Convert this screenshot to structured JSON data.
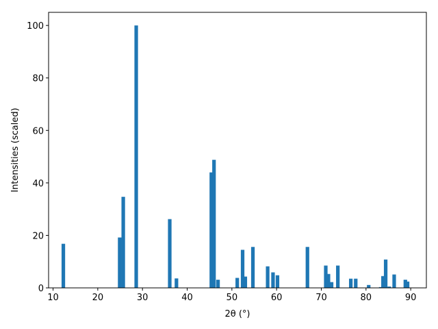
{
  "chart_data": {
    "type": "bar",
    "title": "",
    "xlabel": "2θ (°)",
    "ylabel": "Intensities (scaled)",
    "xlim": [
      9.0,
      93.5
    ],
    "ylim": [
      0,
      105
    ],
    "xticks": [
      10,
      20,
      30,
      40,
      50,
      60,
      70,
      80,
      90
    ],
    "yticks": [
      0,
      20,
      40,
      60,
      80,
      100
    ],
    "bar_width": 0.8,
    "bar_color": "#1f77b4",
    "grid": false,
    "x": [
      12.3,
      24.9,
      25.7,
      28.6,
      36.1,
      37.6,
      45.4,
      46.0,
      46.9,
      51.2,
      52.4,
      53.0,
      54.7,
      58.0,
      59.2,
      60.2,
      66.9,
      71.0,
      71.6,
      72.3,
      73.7,
      76.6,
      77.7,
      80.6,
      83.3,
      83.8,
      84.4,
      85.2,
      86.3,
      88.8,
      89.3
    ],
    "values": [
      16.8,
      19.2,
      34.7,
      100.0,
      26.2,
      3.6,
      44.0,
      48.8,
      3.1,
      3.8,
      14.5,
      4.3,
      15.6,
      8.2,
      5.9,
      4.8,
      15.6,
      8.5,
      5.3,
      2.2,
      8.5,
      3.5,
      3.5,
      1.1,
      0.3,
      4.5,
      10.8,
      0.5,
      5.1,
      3.1,
      2.4
    ]
  }
}
